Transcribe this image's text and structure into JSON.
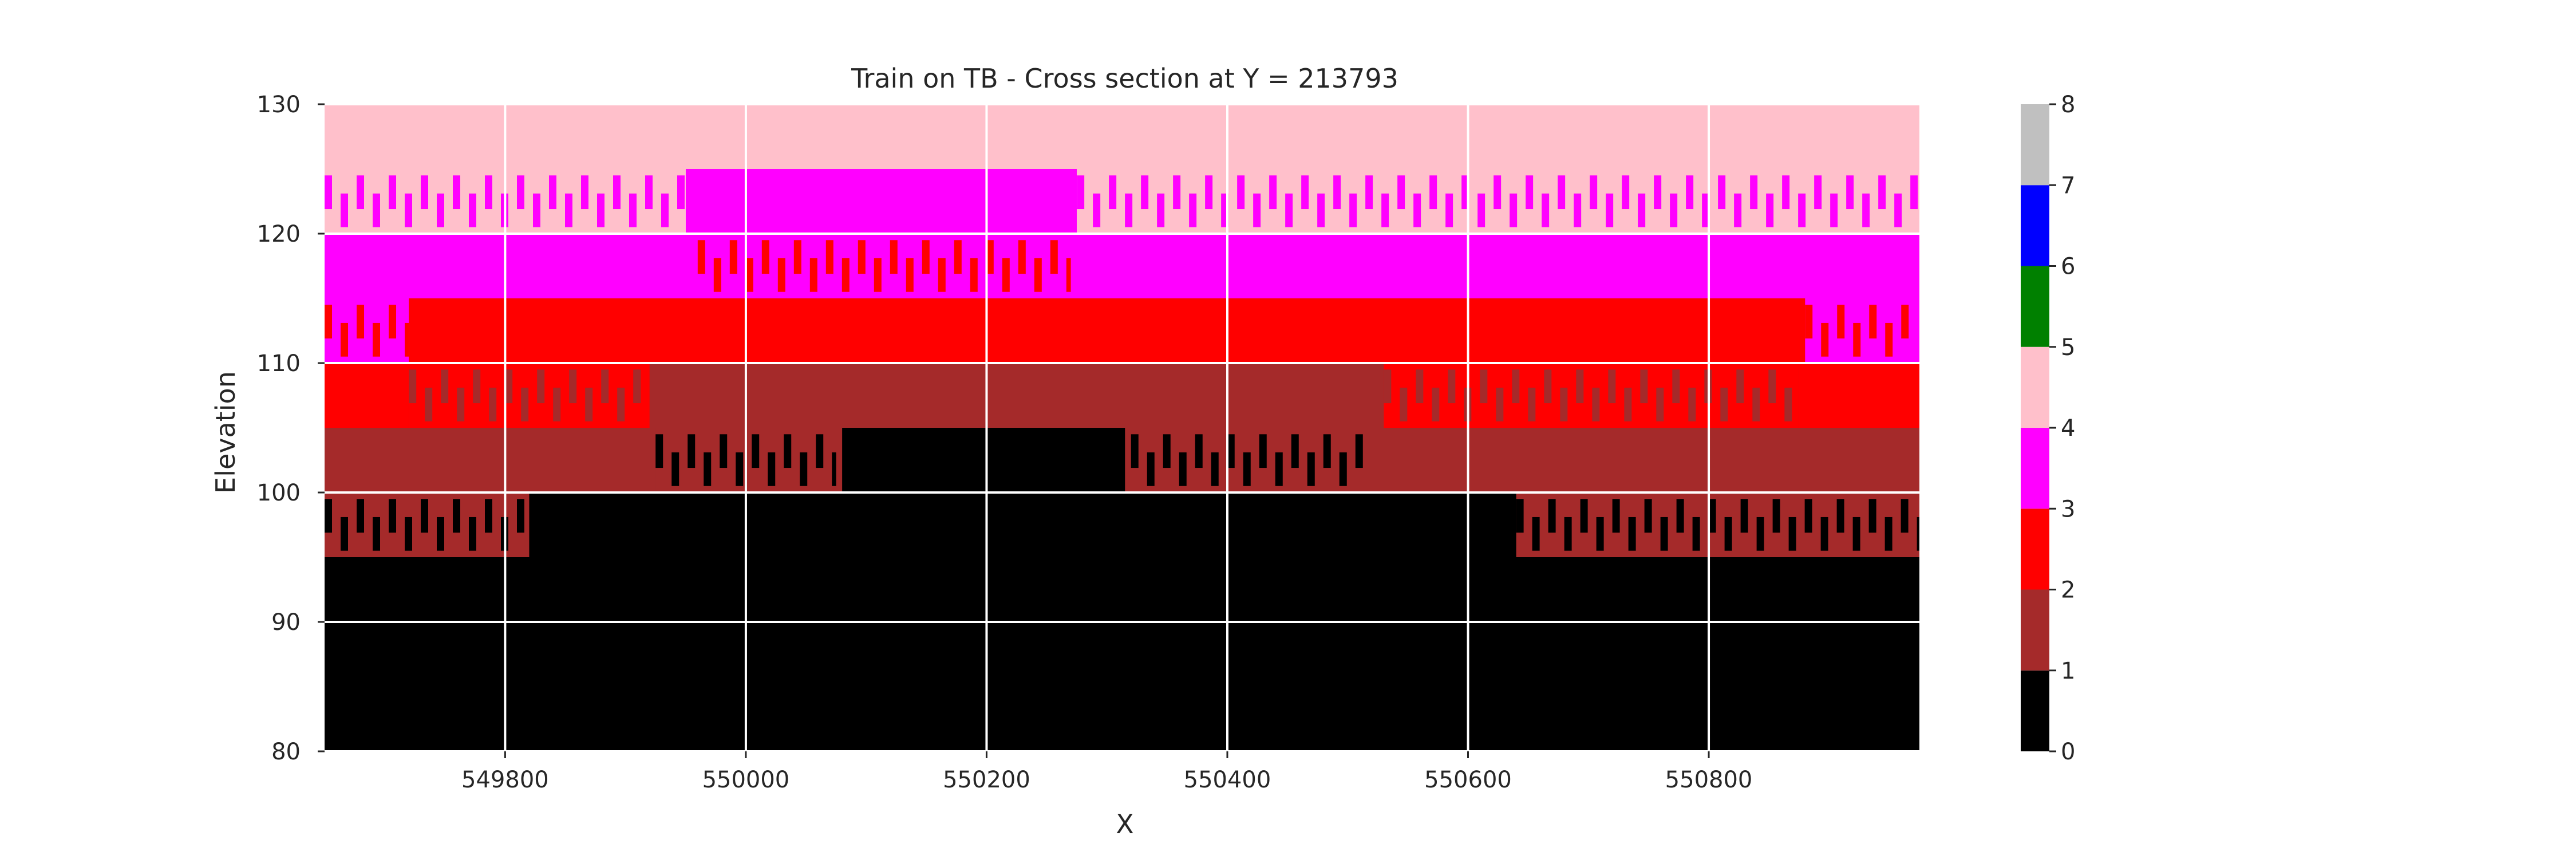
{
  "chart_data": {
    "type": "heatmap",
    "title": "Train on TB - Cross section at Y = 213793",
    "xlabel": "X",
    "ylabel": "Elevation",
    "xlim": [
      549650,
      550975
    ],
    "ylim": [
      80,
      130
    ],
    "x_ticks": [
      549800,
      550000,
      550200,
      550400,
      550600,
      550800
    ],
    "y_ticks": [
      80,
      90,
      100,
      110,
      120,
      130
    ],
    "grid": true,
    "colorbar": {
      "ticks": [
        0,
        1,
        2,
        3,
        4,
        5,
        6,
        7,
        8
      ],
      "classes": [
        {
          "value": 0,
          "color": "#000000"
        },
        {
          "value": 1,
          "color": "#a52a2a"
        },
        {
          "value": 2,
          "color": "#ff0000"
        },
        {
          "value": 3,
          "color": "#ff00ff"
        },
        {
          "value": 4,
          "color": "#ffc0cb"
        },
        {
          "value": 5,
          "color": "#008000"
        },
        {
          "value": 6,
          "color": "#0000ff"
        },
        {
          "value": 7,
          "color": "#c0c0c0"
        }
      ]
    },
    "layers": [
      {
        "class": 4,
        "bottom": 125,
        "top": 130,
        "x_from": 549650,
        "x_to": 550975
      },
      {
        "class": 3,
        "bottom": 120,
        "top": 125,
        "x_from": 549950,
        "x_to": 550275
      },
      {
        "class": 3,
        "bottom": 115,
        "top": 120,
        "x_from": 549650,
        "x_to": 550975
      },
      {
        "class": 2,
        "bottom": 110,
        "top": 115,
        "x_from": 549650,
        "x_to": 550975
      },
      {
        "class": 1,
        "bottom": 105,
        "top": 110,
        "x_from": 549650,
        "x_to": 550975
      },
      {
        "class": 1,
        "bottom": 100,
        "top": 105,
        "x_from": 549650,
        "x_to": 550975
      },
      {
        "class": 0,
        "bottom": 80,
        "top": 100,
        "x_from": 549650,
        "x_to": 550975
      }
    ],
    "fringe_zones": [
      {
        "base_class": 4,
        "alt_class": 3,
        "bottom": 120,
        "top": 125,
        "x_from": 549650,
        "x_to": 549950
      },
      {
        "base_class": 4,
        "alt_class": 3,
        "bottom": 120,
        "top": 125,
        "x_from": 550275,
        "x_to": 550975
      },
      {
        "base_class": 3,
        "alt_class": 2,
        "bottom": 115,
        "top": 120,
        "x_from": 549960,
        "x_to": 550270
      },
      {
        "base_class": 3,
        "alt_class": 2,
        "bottom": 110,
        "top": 115,
        "x_from": 549650,
        "x_to": 549720
      },
      {
        "base_class": 3,
        "alt_class": 2,
        "bottom": 110,
        "top": 115,
        "x_from": 550880,
        "x_to": 550975
      },
      {
        "base_class": 2,
        "alt_class": 1,
        "bottom": 105,
        "top": 110,
        "x_from": 549720,
        "x_to": 549920
      },
      {
        "base_class": 2,
        "alt_class": 1,
        "bottom": 105,
        "top": 110,
        "x_from": 550530,
        "x_to": 550875
      },
      {
        "base_class": 1,
        "alt_class": 0,
        "bottom": 100,
        "top": 105,
        "x_from": 549925,
        "x_to": 550075
      },
      {
        "base_class": 1,
        "alt_class": 0,
        "bottom": 100,
        "top": 105,
        "x_from": 550320,
        "x_to": 550520
      },
      {
        "base_class": 1,
        "alt_class": 0,
        "bottom": 95,
        "top": 100,
        "x_from": 549650,
        "x_to": 549820
      },
      {
        "base_class": 1,
        "alt_class": 0,
        "bottom": 95,
        "top": 100,
        "x_from": 550640,
        "x_to": 550975
      }
    ],
    "solid_blocks": [
      {
        "class": 2,
        "bottom": 105,
        "top": 110,
        "x_from": 549650,
        "x_to": 549720
      },
      {
        "class": 2,
        "bottom": 105,
        "top": 110,
        "x_from": 550875,
        "x_to": 550975
      },
      {
        "class": 0,
        "bottom": 100,
        "top": 105,
        "x_from": 550080,
        "x_to": 550315
      }
    ]
  }
}
